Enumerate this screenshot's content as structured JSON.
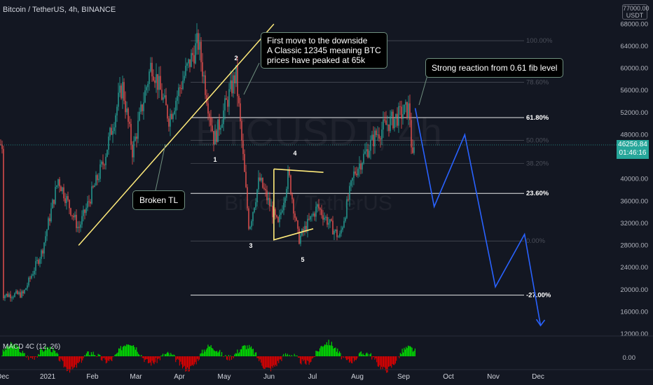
{
  "header": {
    "symbol_line": "Bitcoin / TetherUS, 4h, BINANCE"
  },
  "watermark": {
    "ticker": "BTCUSDT, 4h",
    "name": "Bitcoin / TetherUS"
  },
  "price_axis": {
    "unit_label_top": "77000.00",
    "unit_box": "USDT",
    "current_price": "46256.84",
    "countdown": "01:46:16",
    "macd_zero": "0.00"
  },
  "macd": {
    "label": "MACD 4C (12, 26)"
  },
  "callouts": {
    "downside": [
      "First move to the downside",
      "A Classic 12345 meaning BTC",
      "prices have peaked at 65k"
    ],
    "fib_reaction": "Strong reaction from 0.61 fib level",
    "broken_tl": "Broken TL"
  },
  "colors": {
    "background": "#131722",
    "candle_up": "#26a69a",
    "candle_down": "#ef5350",
    "trendline": "#ffeb7b",
    "projection": "#2962ff",
    "macd_up": "#00e600",
    "macd_down": "#e60000"
  },
  "chart_data": {
    "type": "candlestick",
    "y_axis": {
      "ticks": [
        68000,
        64000,
        60000,
        56000,
        52000,
        48000,
        44000,
        40000,
        36000,
        32000,
        28000,
        24000,
        20000,
        16000,
        12000
      ],
      "tick_labels": [
        "68000.00",
        "64000.00",
        "60000.00",
        "56000.00",
        "52000.00",
        "48000.00",
        "44000.00",
        "40000.00",
        "36000.00",
        "32000.00",
        "28000.00",
        "24000.00",
        "20000.00",
        "16000.00",
        "12000.00"
      ],
      "range": [
        11000,
        72000
      ]
    },
    "x_axis": {
      "tick_labels": [
        "Dec",
        "2021",
        "Feb",
        "Mar",
        "Apr",
        "May",
        "Jun",
        "Jul",
        "Aug",
        "Sep",
        "Oct",
        "Nov",
        "Dec"
      ]
    },
    "fib_levels": [
      {
        "label": "100.00%",
        "price": 65000
      },
      {
        "label": "78.60%",
        "price": 57500
      },
      {
        "label": "61.80%",
        "price": 51100
      },
      {
        "label": "50.00%",
        "price": 47000
      },
      {
        "label": "38.20%",
        "price": 42800
      },
      {
        "label": "23.60%",
        "price": 37400
      },
      {
        "label": "0.00%",
        "price": 28800
      },
      {
        "label": "-27.00%",
        "price": 19000
      }
    ],
    "wave_labels": [
      "1",
      "2",
      "3",
      "4",
      "5"
    ],
    "price_path": [
      [
        "2020-12-01",
        19000
      ],
      [
        "2020-12-15",
        19200
      ],
      [
        "2020-12-28",
        27000
      ],
      [
        "2021-01-08",
        40000
      ],
      [
        "2021-01-22",
        31000
      ],
      [
        "2021-02-08",
        43000
      ],
      [
        "2021-02-21",
        57000
      ],
      [
        "2021-02-28",
        45000
      ],
      [
        "2021-03-13",
        61000
      ],
      [
        "2021-03-25",
        51000
      ],
      [
        "2021-04-05",
        59000
      ],
      [
        "2021-04-14",
        64800
      ],
      [
        "2021-04-25",
        47000
      ],
      [
        "2021-05-10",
        59000
      ],
      [
        "2021-05-19",
        31000
      ],
      [
        "2021-05-26",
        40000
      ],
      [
        "2021-06-08",
        31500
      ],
      [
        "2021-06-15",
        41000
      ],
      [
        "2021-06-22",
        29000
      ],
      [
        "2021-07-05",
        35000
      ],
      [
        "2021-07-20",
        29300
      ],
      [
        "2021-07-30",
        41000
      ],
      [
        "2021-08-14",
        48000
      ],
      [
        "2021-08-22",
        50000
      ],
      [
        "2021-09-06",
        52800
      ],
      [
        "2021-09-08",
        43000
      ],
      [
        "2021-09-10",
        46256
      ]
    ],
    "projection_path": [
      [
        "2021-09-10",
        52800
      ],
      [
        "2021-09-23",
        35000
      ],
      [
        "2021-10-14",
        48000
      ],
      [
        "2021-11-04",
        20500
      ],
      [
        "2021-11-24",
        30000
      ],
      [
        "2021-12-05",
        13500
      ]
    ],
    "trendline": [
      [
        "2021-01-22",
        28000
      ],
      [
        "2021-06-05",
        68000
      ]
    ]
  }
}
